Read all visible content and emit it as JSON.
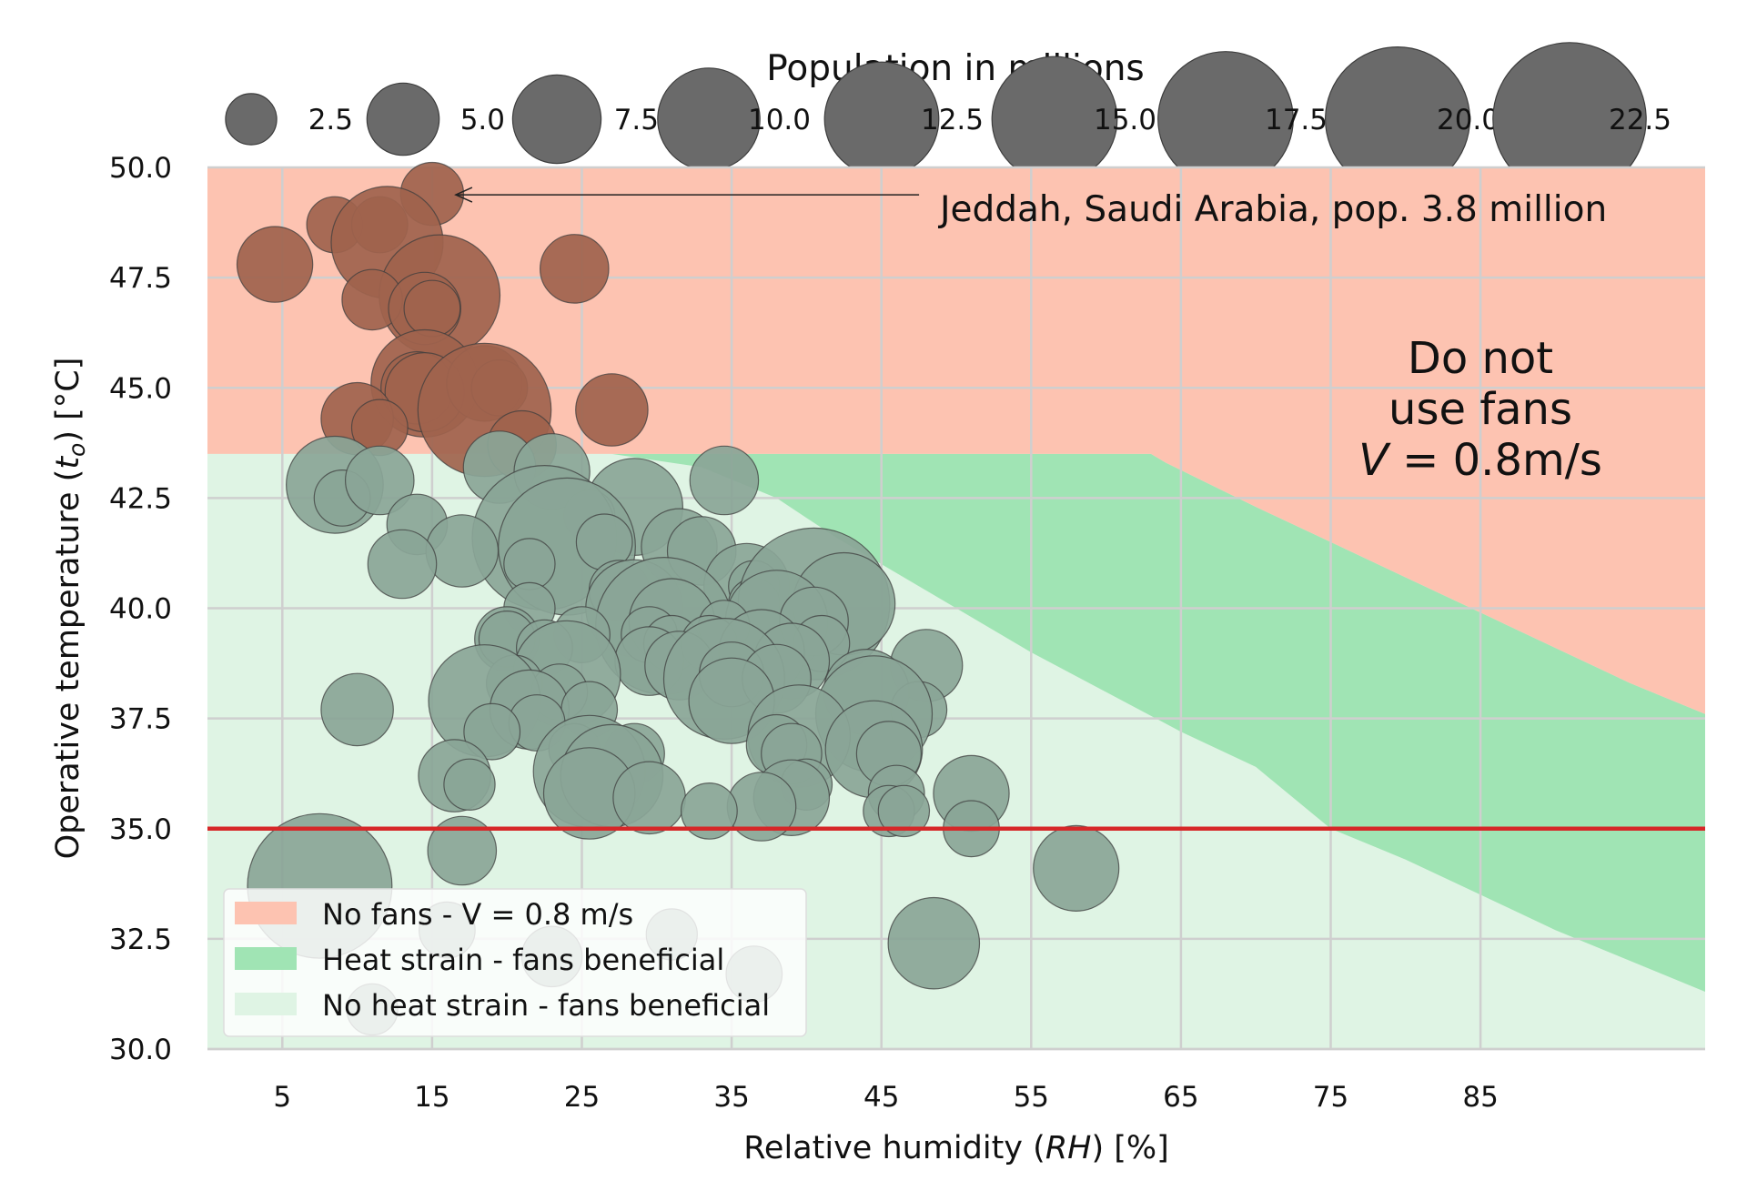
{
  "chart_data": {
    "type": "scatter",
    "xlabel": "Relative humidity (RH) [%]",
    "ylabel": "Operative temperature (t_o) [°C]",
    "xlim": [
      0,
      100
    ],
    "ylim": [
      30.0,
      50.0
    ],
    "x_ticks": [
      5,
      15,
      25,
      35,
      45,
      55,
      65,
      75,
      85
    ],
    "y_ticks": [
      "30.0",
      "32.5",
      "35.0",
      "37.5",
      "40.0",
      "42.5",
      "45.0",
      "47.5",
      "50.0"
    ],
    "grid": true,
    "threshold_line": {
      "y": 35.0,
      "color": "#d62728"
    },
    "colors": {
      "no_fans": "#fdc3b1",
      "heat_strain": "#a0e4b4",
      "no_heat_strain": "#dff4e4",
      "point_hot": "#a0634d",
      "point_ok": "#8aa597",
      "legend_bubble": "#6a6a6a"
    },
    "zones": {
      "heat_strain_upper": [
        [
          0,
          43.5
        ],
        [
          27,
          43.5
        ],
        [
          33,
          43.2
        ],
        [
          38,
          42.5
        ],
        [
          42,
          41.6
        ],
        [
          50,
          40.0
        ],
        [
          55,
          39.0
        ],
        [
          60,
          38.1
        ],
        [
          65,
          37.2
        ],
        [
          70,
          36.4
        ],
        [
          75,
          35.0
        ],
        [
          80,
          34.3
        ],
        [
          85,
          33.5
        ],
        [
          90,
          32.7
        ],
        [
          95,
          32.0
        ],
        [
          100,
          31.3
        ]
      ],
      "no_fans_lower": [
        [
          0,
          43.5
        ],
        [
          63,
          43.5
        ],
        [
          64,
          43.3
        ],
        [
          70,
          42.3
        ],
        [
          75,
          41.5
        ],
        [
          80,
          40.7
        ],
        [
          85,
          39.9
        ],
        [
          90,
          39.1
        ],
        [
          95,
          38.3
        ],
        [
          100,
          37.6
        ]
      ]
    },
    "legend": {
      "position": "lower-left",
      "entries": [
        "No fans - V = 0.8 m/s",
        "Heat strain - fans beneficial",
        "No heat strain - fans beneficial"
      ]
    },
    "size_legend": {
      "title": "Population in millions",
      "values": [
        2.5,
        5.0,
        7.5,
        10.0,
        12.5,
        15.0,
        17.5,
        20.0,
        22.5
      ],
      "labels": [
        "2.5",
        "5.0",
        "7.5",
        "10.0",
        "12.5",
        "15.0",
        "17.5",
        "20.0",
        "22.5"
      ]
    },
    "annotation": {
      "text": "Jeddah, Saudi Arabia, pop. 3.8 million",
      "point": [
        15,
        49.4
      ],
      "text_pos": [
        48,
        49.4
      ]
    },
    "zone_label": [
      "Do not",
      "use fans",
      "V = 0.8m/s"
    ],
    "points": [
      [
        15,
        49.4,
        3.8
      ],
      [
        8.5,
        48.7,
        3
      ],
      [
        11.5,
        48.7,
        3
      ],
      [
        12,
        48.3,
        12
      ],
      [
        4.5,
        47.8,
        5.5
      ],
      [
        24.5,
        47.7,
        4.5
      ],
      [
        15.5,
        47.1,
        14
      ],
      [
        11,
        47.0,
        3.5
      ],
      [
        14.5,
        46.8,
        5
      ],
      [
        15,
        46.8,
        3
      ],
      [
        14.5,
        45.1,
        11
      ],
      [
        14,
        45.0,
        5
      ],
      [
        14.5,
        44.9,
        6
      ],
      [
        18.5,
        45.1,
        5.5
      ],
      [
        19.5,
        45.0,
        3
      ],
      [
        18.5,
        44.5,
        17
      ],
      [
        10,
        44.3,
        5
      ],
      [
        11.5,
        44.1,
        3
      ],
      [
        27,
        44.5,
        5
      ],
      [
        21,
        43.7,
        4.5
      ],
      [
        8.5,
        42.8,
        9
      ],
      [
        9,
        42.5,
        3
      ],
      [
        11.5,
        42.9,
        4.5
      ],
      [
        19.5,
        43.2,
        5
      ],
      [
        23,
        43.1,
        5.5
      ],
      [
        34.5,
        42.9,
        4.5
      ],
      [
        28.5,
        42.3,
        9
      ],
      [
        14,
        41.9,
        3.5
      ],
      [
        25.5,
        42.1,
        2.5
      ],
      [
        22.5,
        41.6,
        20
      ],
      [
        24,
        41.4,
        18
      ],
      [
        26.5,
        41.5,
        3
      ],
      [
        31.5,
        41.4,
        5.5
      ],
      [
        33,
        41.3,
        4.5
      ],
      [
        17,
        41.3,
        5
      ],
      [
        13,
        41.0,
        4.5
      ],
      [
        21.5,
        41.0,
        2.5
      ],
      [
        36,
        40.5,
        7
      ],
      [
        36.5,
        40.5,
        2.5
      ],
      [
        27.5,
        40.4,
        3.5
      ],
      [
        36.5,
        40.1,
        2.5
      ],
      [
        40.5,
        40.1,
        22
      ],
      [
        42.5,
        40.1,
        10
      ],
      [
        28.5,
        40.0,
        9
      ],
      [
        21.5,
        40.0,
        2.5
      ],
      [
        30.5,
        39.6,
        18
      ],
      [
        31,
        39.7,
        7
      ],
      [
        38,
        39.7,
        10
      ],
      [
        40.5,
        39.7,
        4.5
      ],
      [
        34.5,
        39.6,
        2.5
      ],
      [
        20,
        39.3,
        4
      ],
      [
        20,
        39.3,
        3
      ],
      [
        25,
        39.4,
        3
      ],
      [
        29.5,
        39.4,
        3
      ],
      [
        31,
        39.2,
        3
      ],
      [
        33.5,
        39.2,
        3
      ],
      [
        41,
        39.2,
        3
      ],
      [
        22.5,
        39.1,
        3
      ],
      [
        37,
        39.0,
        7
      ],
      [
        29.5,
        38.8,
        4.5
      ],
      [
        31.5,
        38.7,
        4.5
      ],
      [
        39,
        38.8,
        5.5
      ],
      [
        48,
        38.7,
        5
      ],
      [
        24,
        38.5,
        11
      ],
      [
        34.5,
        38.4,
        14
      ],
      [
        35,
        38.5,
        4
      ],
      [
        38,
        38.4,
        4.5
      ],
      [
        20.5,
        38.3,
        3
      ],
      [
        23.5,
        38.1,
        3
      ],
      [
        44,
        38.1,
        7
      ],
      [
        18.5,
        37.9,
        12
      ],
      [
        35,
        37.9,
        7
      ],
      [
        10,
        37.7,
        5
      ],
      [
        21.5,
        37.7,
        6
      ],
      [
        25.5,
        37.7,
        3
      ],
      [
        47.5,
        37.7,
        3
      ],
      [
        44.5,
        37.6,
        13
      ],
      [
        22,
        37.4,
        3
      ],
      [
        19,
        37.2,
        3
      ],
      [
        39.5,
        37.1,
        10
      ],
      [
        38,
        36.9,
        3.5
      ],
      [
        24.5,
        36.8,
        2.5
      ],
      [
        39,
        36.7,
        3.5
      ],
      [
        28.5,
        36.7,
        3.5
      ],
      [
        44.5,
        36.8,
        9
      ],
      [
        45.5,
        36.7,
        4
      ],
      [
        25.5,
        36.3,
        12
      ],
      [
        27,
        36.2,
        10
      ],
      [
        16.5,
        36.2,
        5
      ],
      [
        17.5,
        36.0,
        2.5
      ],
      [
        40,
        36.0,
        2.5
      ],
      [
        25.5,
        35.8,
        8
      ],
      [
        29.5,
        35.7,
        5
      ],
      [
        39,
        35.7,
        5.5
      ],
      [
        46,
        35.8,
        3
      ],
      [
        51,
        35.8,
        5.5
      ],
      [
        37,
        35.5,
        4.5
      ],
      [
        45.5,
        35.4,
        2.5
      ],
      [
        46.5,
        35.4,
        2.5
      ],
      [
        33.5,
        35.4,
        3
      ],
      [
        51,
        35.0,
        3
      ],
      [
        17,
        34.5,
        4.5
      ],
      [
        58,
        34.1,
        7
      ],
      [
        7.5,
        33.7,
        20
      ],
      [
        48.5,
        32.4,
        8
      ],
      [
        16,
        32.7,
        3
      ],
      [
        31,
        32.6,
        2.5
      ],
      [
        23,
        32.1,
        3.5
      ],
      [
        36.5,
        31.7,
        3
      ],
      [
        11,
        30.9,
        2.5
      ]
    ]
  }
}
